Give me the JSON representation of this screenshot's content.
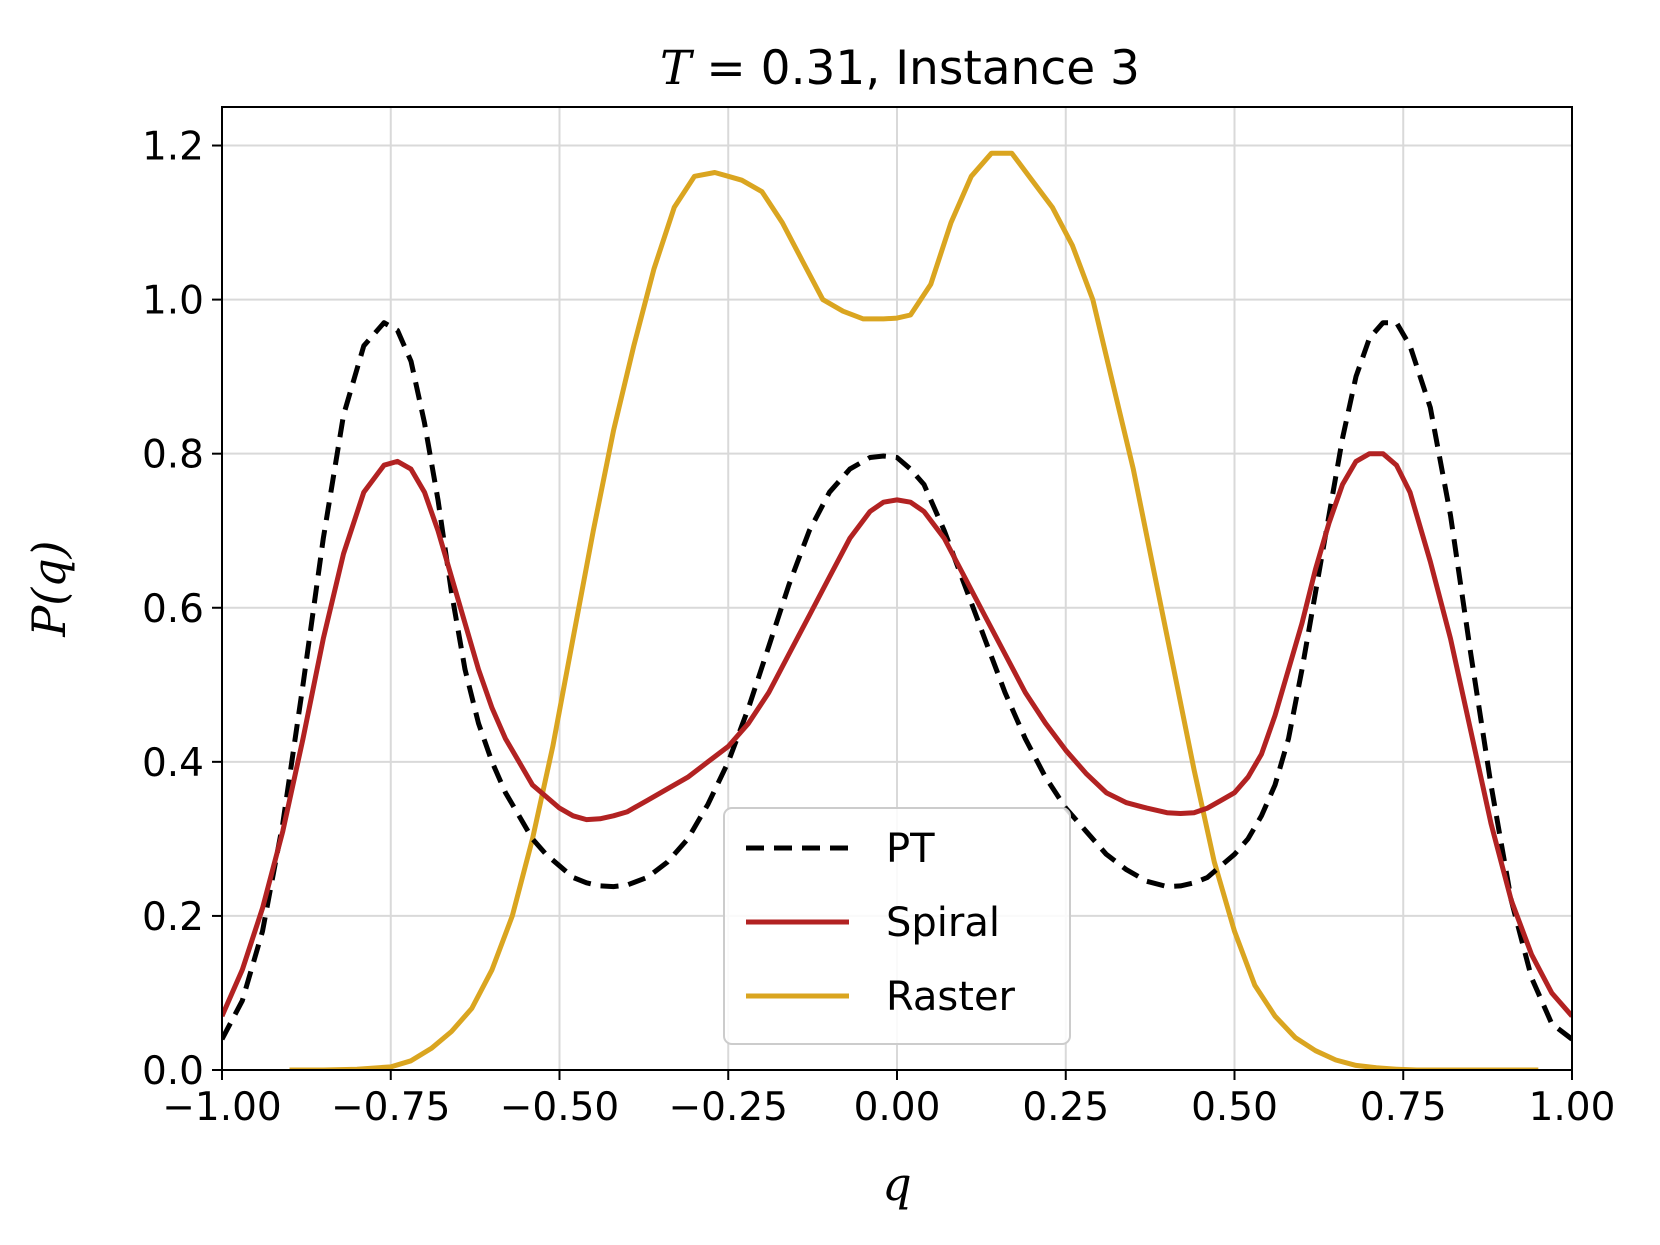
{
  "chart_data": {
    "type": "line",
    "title": "T = 0.31, Instance 3",
    "title_var": "T",
    "title_rest": " = 0.31, Instance 3",
    "xlabel": "q",
    "ylabel": "P(q)",
    "xlim": [
      -1.0,
      1.0
    ],
    "ylim": [
      0.0,
      1.25
    ],
    "xticks": [
      -1.0,
      -0.75,
      -0.5,
      -0.25,
      0.0,
      0.25,
      0.5,
      0.75,
      1.0
    ],
    "xtick_labels": [
      "−1.00",
      "−0.75",
      "−0.50",
      "−0.25",
      "0.00",
      "0.25",
      "0.50",
      "0.75",
      "1.00"
    ],
    "yticks": [
      0.0,
      0.2,
      0.4,
      0.6,
      0.8,
      1.0,
      1.2
    ],
    "ytick_labels": [
      "0.0",
      "0.2",
      "0.4",
      "0.6",
      "0.8",
      "1.0",
      "1.2"
    ],
    "grid": true,
    "legend_position": "bottom-center",
    "series": [
      {
        "name": "PT",
        "color": "#000000",
        "style": "dashed",
        "x": [
          -1.0,
          -0.97,
          -0.94,
          -0.91,
          -0.88,
          -0.85,
          -0.82,
          -0.79,
          -0.76,
          -0.74,
          -0.72,
          -0.7,
          -0.68,
          -0.66,
          -0.64,
          -0.62,
          -0.6,
          -0.58,
          -0.56,
          -0.54,
          -0.52,
          -0.5,
          -0.48,
          -0.46,
          -0.44,
          -0.42,
          -0.4,
          -0.37,
          -0.34,
          -0.31,
          -0.28,
          -0.25,
          -0.22,
          -0.19,
          -0.16,
          -0.13,
          -0.1,
          -0.07,
          -0.04,
          -0.02,
          0.0,
          0.02,
          0.04,
          0.07,
          0.1,
          0.13,
          0.16,
          0.19,
          0.22,
          0.25,
          0.28,
          0.31,
          0.34,
          0.37,
          0.4,
          0.42,
          0.44,
          0.46,
          0.48,
          0.5,
          0.52,
          0.54,
          0.56,
          0.58,
          0.6,
          0.62,
          0.64,
          0.66,
          0.68,
          0.7,
          0.72,
          0.74,
          0.76,
          0.79,
          0.82,
          0.85,
          0.88,
          0.91,
          0.94,
          0.97,
          1.0
        ],
        "y": [
          0.04,
          0.09,
          0.18,
          0.32,
          0.5,
          0.69,
          0.85,
          0.94,
          0.97,
          0.96,
          0.92,
          0.84,
          0.74,
          0.62,
          0.52,
          0.45,
          0.4,
          0.36,
          0.33,
          0.3,
          0.28,
          0.265,
          0.25,
          0.243,
          0.239,
          0.238,
          0.24,
          0.25,
          0.27,
          0.3,
          0.345,
          0.4,
          0.47,
          0.55,
          0.63,
          0.7,
          0.75,
          0.78,
          0.795,
          0.797,
          0.795,
          0.78,
          0.76,
          0.7,
          0.63,
          0.56,
          0.49,
          0.43,
          0.38,
          0.34,
          0.31,
          0.28,
          0.26,
          0.245,
          0.238,
          0.239,
          0.243,
          0.25,
          0.265,
          0.28,
          0.3,
          0.33,
          0.37,
          0.43,
          0.52,
          0.62,
          0.72,
          0.82,
          0.9,
          0.95,
          0.97,
          0.97,
          0.94,
          0.86,
          0.72,
          0.54,
          0.37,
          0.22,
          0.12,
          0.06,
          0.04
        ]
      },
      {
        "name": "Spiral",
        "color": "#b22222",
        "style": "solid",
        "x": [
          -1.0,
          -0.97,
          -0.94,
          -0.91,
          -0.88,
          -0.85,
          -0.82,
          -0.79,
          -0.76,
          -0.74,
          -0.72,
          -0.7,
          -0.68,
          -0.66,
          -0.64,
          -0.62,
          -0.6,
          -0.58,
          -0.56,
          -0.54,
          -0.52,
          -0.5,
          -0.48,
          -0.46,
          -0.44,
          -0.42,
          -0.4,
          -0.37,
          -0.34,
          -0.31,
          -0.28,
          -0.25,
          -0.22,
          -0.19,
          -0.16,
          -0.13,
          -0.1,
          -0.07,
          -0.04,
          -0.02,
          0.0,
          0.02,
          0.04,
          0.07,
          0.1,
          0.13,
          0.16,
          0.19,
          0.22,
          0.25,
          0.28,
          0.31,
          0.34,
          0.37,
          0.4,
          0.42,
          0.44,
          0.46,
          0.48,
          0.5,
          0.52,
          0.54,
          0.56,
          0.58,
          0.6,
          0.62,
          0.64,
          0.66,
          0.68,
          0.7,
          0.72,
          0.74,
          0.76,
          0.79,
          0.82,
          0.85,
          0.88,
          0.91,
          0.94,
          0.97,
          1.0
        ],
        "y": [
          0.07,
          0.13,
          0.21,
          0.31,
          0.43,
          0.56,
          0.67,
          0.75,
          0.785,
          0.79,
          0.78,
          0.75,
          0.7,
          0.64,
          0.58,
          0.52,
          0.47,
          0.43,
          0.4,
          0.37,
          0.355,
          0.34,
          0.33,
          0.325,
          0.326,
          0.33,
          0.335,
          0.35,
          0.365,
          0.38,
          0.4,
          0.42,
          0.45,
          0.49,
          0.54,
          0.59,
          0.64,
          0.69,
          0.725,
          0.737,
          0.74,
          0.737,
          0.725,
          0.69,
          0.64,
          0.59,
          0.54,
          0.49,
          0.45,
          0.415,
          0.385,
          0.36,
          0.347,
          0.34,
          0.334,
          0.333,
          0.334,
          0.34,
          0.35,
          0.36,
          0.38,
          0.41,
          0.46,
          0.52,
          0.58,
          0.65,
          0.71,
          0.76,
          0.79,
          0.8,
          0.8,
          0.785,
          0.75,
          0.66,
          0.56,
          0.44,
          0.32,
          0.22,
          0.15,
          0.1,
          0.07
        ]
      },
      {
        "name": "Raster",
        "color": "#daa520",
        "style": "solid",
        "x": [
          -0.9,
          -0.85,
          -0.8,
          -0.75,
          -0.72,
          -0.69,
          -0.66,
          -0.63,
          -0.6,
          -0.57,
          -0.54,
          -0.51,
          -0.48,
          -0.45,
          -0.42,
          -0.39,
          -0.36,
          -0.33,
          -0.3,
          -0.27,
          -0.25,
          -0.23,
          -0.2,
          -0.17,
          -0.14,
          -0.11,
          -0.08,
          -0.05,
          -0.02,
          0.0,
          0.02,
          0.05,
          0.08,
          0.11,
          0.14,
          0.17,
          0.2,
          0.23,
          0.26,
          0.29,
          0.32,
          0.35,
          0.38,
          0.41,
          0.44,
          0.47,
          0.5,
          0.53,
          0.56,
          0.59,
          0.62,
          0.65,
          0.68,
          0.71,
          0.74,
          0.77,
          0.8,
          0.85,
          0.9,
          0.95
        ],
        "y": [
          0.0,
          0.0,
          0.001,
          0.004,
          0.012,
          0.028,
          0.05,
          0.08,
          0.13,
          0.2,
          0.3,
          0.42,
          0.56,
          0.7,
          0.83,
          0.94,
          1.04,
          1.12,
          1.16,
          1.165,
          1.16,
          1.155,
          1.14,
          1.1,
          1.05,
          1.0,
          0.985,
          0.975,
          0.975,
          0.976,
          0.98,
          1.02,
          1.1,
          1.16,
          1.19,
          1.19,
          1.155,
          1.12,
          1.07,
          1.0,
          0.89,
          0.78,
          0.65,
          0.52,
          0.39,
          0.27,
          0.18,
          0.11,
          0.07,
          0.042,
          0.025,
          0.013,
          0.006,
          0.003,
          0.001,
          0.0,
          0.0,
          0.0,
          0.0,
          0.0
        ]
      }
    ]
  }
}
